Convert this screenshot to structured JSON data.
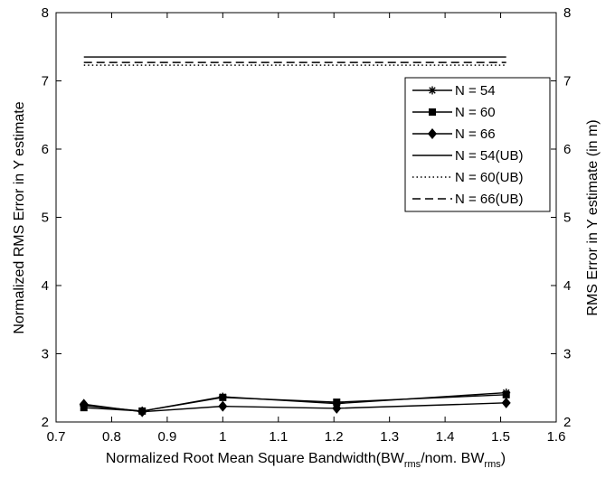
{
  "chart_data": {
    "type": "line",
    "xlabel_parts": {
      "prefix": "Normalized Root Mean Square Bandwidth(BW",
      "sub1": "rms",
      "middle": "/nom. BW",
      "sub2": "rms",
      "suffix": ")"
    },
    "ylabel": "Normalized RMS Error in Y estimate",
    "ylabel_right": "RMS Error in Y estimate (in m)",
    "xlim": [
      0.7,
      1.6
    ],
    "ylim": [
      2,
      8
    ],
    "xticks": [
      "0.7",
      "0.8",
      "0.9",
      "1",
      "1.1",
      "1.2",
      "1.3",
      "1.4",
      "1.5",
      "1.6"
    ],
    "yticks": [
      "2",
      "3",
      "4",
      "5",
      "6",
      "7",
      "8"
    ],
    "yticks_right": [
      "2",
      "3",
      "4",
      "5",
      "6",
      "7",
      "8"
    ],
    "grid": false,
    "legend_position": "upper-right",
    "x": [
      0.75,
      0.855,
      1.0,
      1.205,
      1.51
    ],
    "series": [
      {
        "name": "N = 54",
        "marker": "star",
        "dash": "solid",
        "values": [
          2.24,
          2.16,
          2.37,
          2.27,
          2.43
        ]
      },
      {
        "name": "N = 60",
        "marker": "square",
        "dash": "solid",
        "values": [
          2.21,
          2.16,
          2.36,
          2.29,
          2.4
        ]
      },
      {
        "name": "N = 66",
        "marker": "diamond",
        "dash": "solid",
        "values": [
          2.26,
          2.15,
          2.23,
          2.2,
          2.28
        ]
      },
      {
        "name": "N = 54(UB)",
        "marker": "none",
        "dash": "solid",
        "values": [
          7.35,
          7.35,
          7.35,
          7.35,
          7.35
        ]
      },
      {
        "name": "N = 60(UB)",
        "marker": "none",
        "dash": "dotted",
        "values": [
          7.23,
          7.23,
          7.23,
          7.23,
          7.23
        ]
      },
      {
        "name": "N = 66(UB)",
        "marker": "none",
        "dash": "dashed",
        "values": [
          7.27,
          7.27,
          7.27,
          7.27,
          7.27
        ]
      }
    ]
  }
}
